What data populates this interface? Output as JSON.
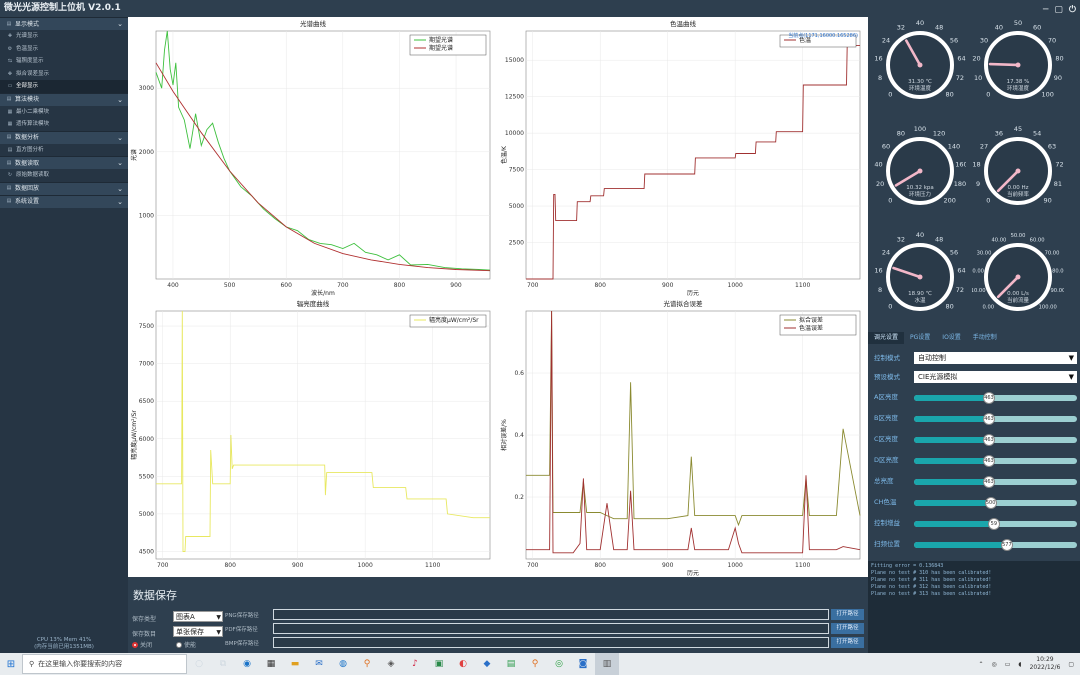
{
  "window": {
    "title": "微光光源控制上位机 V2.0.1",
    "controls": [
      "─",
      "▢",
      "⏻"
    ]
  },
  "sidebar": {
    "groups": [
      {
        "label": "显示模式",
        "items": [
          {
            "label": "光谱显示",
            "icon": "plus-icon"
          },
          {
            "label": "色温显示",
            "icon": "gear-icon"
          },
          {
            "label": "辐照度显示",
            "icon": "arrows-icon"
          },
          {
            "label": "拟合误差显示",
            "icon": "cross-arrows-icon"
          },
          {
            "label": "全部显示",
            "icon": "monitor-icon",
            "active": true
          }
        ]
      },
      {
        "label": "算法模块",
        "items": [
          {
            "label": "最小二乘模块",
            "icon": "grid-icon"
          },
          {
            "label": "遗传算法模块",
            "icon": "grid-icon"
          }
        ]
      },
      {
        "label": "数据分析",
        "items": [
          {
            "label": "直方图分析",
            "icon": "chart-icon"
          }
        ]
      },
      {
        "label": "数据读取",
        "items": [
          {
            "label": "原始数据读取",
            "icon": "refresh-icon"
          }
        ]
      },
      {
        "label": "数据回放",
        "items": []
      },
      {
        "label": "系统设置",
        "items": []
      }
    ],
    "cpu_line1": "CPU 13%  Mem 41%",
    "cpu_line2": "(内存当前已用1351MB)"
  },
  "plots": {
    "spectrum": {
      "title": "光谱曲线",
      "xlabel": "波长/nm",
      "ylabel": "光谱",
      "legend": [
        "期望光谱",
        "期望光谱"
      ]
    },
    "cct": {
      "title": "色温曲线",
      "xlabel": "历元",
      "ylabel": "色温/K",
      "legend": [
        "色温"
      ],
      "tooltip": "当前点(1171,16000.165286)"
    },
    "irradiance": {
      "title": "辐亮度曲线",
      "xlabel": "",
      "ylabel": "辐亮度μW/cm²/Sr",
      "legend": [
        "辐亮度μW/cm²/Sr"
      ]
    },
    "fit": {
      "title": "光谱拟合误差",
      "xlabel": "历元",
      "ylabel": "相对误差/%",
      "legend": [
        "拟合误差",
        "色温误差"
      ]
    }
  },
  "chart_data": [
    {
      "type": "line",
      "title": "光谱曲线",
      "xlabel": "波长/nm",
      "ylabel": "光谱",
      "xlim": [
        370,
        960
      ],
      "ylim": [
        0,
        3900
      ],
      "xticks": [
        400,
        500,
        600,
        700,
        800,
        900
      ],
      "yticks": [
        1000,
        2000,
        3000
      ],
      "series": [
        {
          "name": "期望光谱",
          "color": "#3ec03e",
          "x": [
            370,
            380,
            385,
            390,
            395,
            400,
            405,
            410,
            420,
            430,
            440,
            450,
            460,
            470,
            480,
            490,
            500,
            520,
            540,
            560,
            580,
            600,
            620,
            640,
            660,
            680,
            700,
            720,
            740,
            760,
            780,
            800,
            820,
            850,
            880,
            910,
            940,
            960
          ],
          "y": [
            3250,
            3000,
            3600,
            3900,
            3300,
            3050,
            3400,
            2700,
            2500,
            2050,
            2600,
            2100,
            2350,
            2450,
            2150,
            1900,
            1700,
            1450,
            1300,
            1100,
            950,
            820,
            760,
            620,
            560,
            540,
            480,
            560,
            420,
            380,
            300,
            380,
            220,
            230,
            180,
            160,
            150,
            140
          ]
        },
        {
          "name": "期望光谱",
          "color": "#b03030",
          "x": [
            370,
            400,
            450,
            500,
            550,
            600,
            650,
            700,
            750,
            800,
            850,
            900,
            960
          ],
          "y": [
            3400,
            2950,
            2300,
            1700,
            1200,
            820,
            560,
            400,
            300,
            230,
            180,
            150,
            130
          ]
        }
      ]
    },
    {
      "type": "line",
      "title": "色温曲线",
      "xlabel": "历元",
      "ylabel": "色温/K",
      "xlim": [
        690,
        1185
      ],
      "ylim": [
        0,
        17000
      ],
      "xticks": [
        700,
        800,
        900,
        1000,
        1100
      ],
      "yticks": [
        2500,
        5000,
        7500,
        10000,
        12500,
        15000
      ],
      "series": [
        {
          "name": "色温",
          "color": "#a03030",
          "x": [
            690,
            730,
            731,
            733,
            734,
            765,
            766,
            785,
            786,
            805,
            806,
            865,
            866,
            940,
            941,
            1000,
            1001,
            1030,
            1031,
            1060,
            1061,
            1100,
            1101,
            1165,
            1166,
            1185
          ],
          "y": [
            0,
            0,
            5800,
            5800,
            4000,
            4000,
            5300,
            5300,
            5700,
            5700,
            6200,
            6200,
            7200,
            7200,
            8300,
            8300,
            8600,
            8600,
            9400,
            9400,
            10100,
            10100,
            13300,
            13300,
            16000,
            16000
          ]
        }
      ]
    },
    {
      "type": "line",
      "title": "辐亮度曲线",
      "xlabel": "",
      "ylabel": "辐亮度μW/cm²/Sr",
      "xlim": [
        690,
        1185
      ],
      "ylim": [
        4400,
        7700
      ],
      "xticks": [
        700,
        800,
        900,
        1000,
        1100
      ],
      "yticks": [
        4500,
        5000,
        5500,
        6000,
        6500,
        7000,
        7500
      ],
      "series": [
        {
          "name": "辐亮度μW/cm²/Sr",
          "color": "#e8e860",
          "x": [
            690,
            728,
            729,
            730,
            733,
            734,
            770,
            771,
            774,
            775,
            800,
            801,
            803,
            805,
            900,
            940,
            941,
            943,
            1010,
            1012,
            1060,
            1062,
            1120,
            1122,
            1160,
            1185
          ],
          "y": [
            5400,
            5400,
            7700,
            4500,
            4500,
            4700,
            4700,
            5850,
            5400,
            5400,
            5400,
            6050,
            5600,
            5650,
            5650,
            5650,
            5250,
            5550,
            5550,
            5350,
            5350,
            5200,
            5200,
            5000,
            4950,
            4950
          ]
        }
      ]
    },
    {
      "type": "line",
      "title": "光谱拟合误差",
      "xlabel": "历元",
      "ylabel": "相对误差/%",
      "xlim": [
        690,
        1185
      ],
      "ylim": [
        0,
        0.8
      ],
      "xticks": [
        700,
        800,
        900,
        1000,
        1100
      ],
      "yticks": [
        0.2,
        0.4,
        0.6
      ],
      "series": [
        {
          "name": "拟合误差",
          "color": "#8a8a30",
          "x": [
            690,
            725,
            728,
            730,
            732,
            734,
            760,
            770,
            775,
            780,
            800,
            810,
            820,
            830,
            840,
            845,
            850,
            860,
            900,
            930,
            935,
            940,
            1000,
            1005,
            1010,
            1060,
            1100,
            1105,
            1110,
            1150,
            1160,
            1185
          ],
          "y": [
            0.27,
            0.27,
            0.8,
            0.15,
            0.15,
            0.15,
            0.15,
            0.15,
            0.25,
            0.15,
            0.15,
            0.14,
            0.13,
            0.13,
            0.13,
            0.57,
            0.13,
            0.13,
            0.13,
            0.14,
            0.33,
            0.14,
            0.14,
            0.11,
            0.14,
            0.14,
            0.14,
            0.26,
            0.14,
            0.14,
            0.42,
            0.14
          ]
        },
        {
          "name": "色温误差",
          "color": "#a03030",
          "x": [
            690,
            725,
            728,
            730,
            732,
            760,
            770,
            775,
            778,
            780,
            800,
            810,
            820,
            840,
            845,
            850,
            860,
            900,
            930,
            935,
            940,
            990,
            1000,
            1005,
            1010,
            1060,
            1100,
            1105,
            1110,
            1150,
            1160,
            1185
          ],
          "y": [
            0.03,
            0.03,
            0.8,
            0.02,
            0.02,
            0.02,
            0.05,
            0.26,
            0.12,
            0.03,
            0.03,
            0.18,
            0.03,
            0.03,
            0.22,
            0.03,
            0.03,
            0.03,
            0.03,
            0.1,
            0.03,
            0.03,
            0.1,
            0.05,
            0.02,
            0.02,
            0.02,
            0.27,
            0.03,
            0.03,
            0.04,
            0.03
          ]
        }
      ]
    }
  ],
  "gauges": [
    {
      "label": "环境温度",
      "value_text": "31.30 ℃",
      "value": 31.3,
      "min": 0,
      "max": 80,
      "ticks": [
        "0",
        "8",
        "16",
        "24",
        "32",
        "40",
        "48",
        "56",
        "64",
        "72",
        "80"
      ]
    },
    {
      "label": "环境湿度",
      "value_text": "17.38 %",
      "value": 17.38,
      "min": 0,
      "max": 100,
      "ticks": [
        "0",
        "10",
        "20",
        "30",
        "40",
        "50",
        "60",
        "70",
        "80",
        "90",
        "100"
      ]
    },
    {
      "label": "环境压力",
      "value_text": "10.32 kpa",
      "value": 10.32,
      "min": 0,
      "max": 200,
      "ticks": [
        "0",
        "20",
        "40",
        "60",
        "80",
        "100",
        "120",
        "140",
        "160",
        "180",
        "200"
      ]
    },
    {
      "label": "当前频率",
      "value_text": "0.00 Hz",
      "value": 0,
      "min": 0,
      "max": 90,
      "ticks": [
        "0",
        "9",
        "18",
        "27",
        "36",
        "45",
        "54",
        "63",
        "72",
        "81",
        "90"
      ]
    },
    {
      "label": "水温",
      "value_text": "18.90 ℃",
      "value": 18.9,
      "min": 0,
      "max": 80,
      "ticks": [
        "0",
        "8",
        "16",
        "24",
        "32",
        "40",
        "48",
        "56",
        "64",
        "72",
        "80"
      ]
    },
    {
      "label": "当前流量",
      "value_text": "0.00 L/s",
      "value": 0,
      "min": 0,
      "max": 100,
      "ticks": [
        "0.00",
        "10.00",
        "20.00",
        "30.00",
        "40.00",
        "50.00",
        "60.00",
        "70.00",
        "80.00",
        "90.00",
        "100.00"
      ]
    }
  ],
  "control": {
    "tabs": [
      "调光设置",
      "PG设置",
      "IO设置",
      "手动控制"
    ],
    "control_mode_label": "控制模式",
    "control_mode_value": "自动控制",
    "preset_mode_label": "预设模式",
    "preset_mode_value": "CIE光源模拟",
    "sliders": [
      {
        "label": "A区亮度",
        "value": "463",
        "fraction": 0.46
      },
      {
        "label": "B区亮度",
        "value": "463",
        "fraction": 0.46
      },
      {
        "label": "C区亮度",
        "value": "463",
        "fraction": 0.46
      },
      {
        "label": "D区亮度",
        "value": "463",
        "fraction": 0.46
      },
      {
        "label": "总亮度",
        "value": "463",
        "fraction": 0.46
      },
      {
        "label": "CH色温",
        "value": "500",
        "fraction": 0.47
      },
      {
        "label": "控制增益",
        "value": "59",
        "fraction": 0.49
      },
      {
        "label": "扫频位置",
        "value": "577",
        "fraction": 0.57
      }
    ]
  },
  "log": [
    "Fitting error = 0.136843",
    "Plane no test # 310 has been calibrated!",
    "Plane no test # 311 has been calibrated!",
    "Plane no test # 312 has been calibrated!",
    "Plane no test # 313 has been calibrated!"
  ],
  "save": {
    "title": "数据保存",
    "type_label": "保存类型",
    "type_value": "图表A",
    "count_label": "保存数目",
    "count_value": "单张保存",
    "radio_on": "关闭",
    "radio_off": "使能",
    "rows": [
      {
        "label": "PNG保存路径",
        "button": "打开路径"
      },
      {
        "label": "PDF保存路径",
        "button": "打开路径"
      },
      {
        "label": "BMP保存路径",
        "button": "打开路径"
      }
    ]
  },
  "taskbar": {
    "search_placeholder": "在这里输入你要搜索的内容",
    "time": "10:29",
    "date": "2022/12/6"
  }
}
